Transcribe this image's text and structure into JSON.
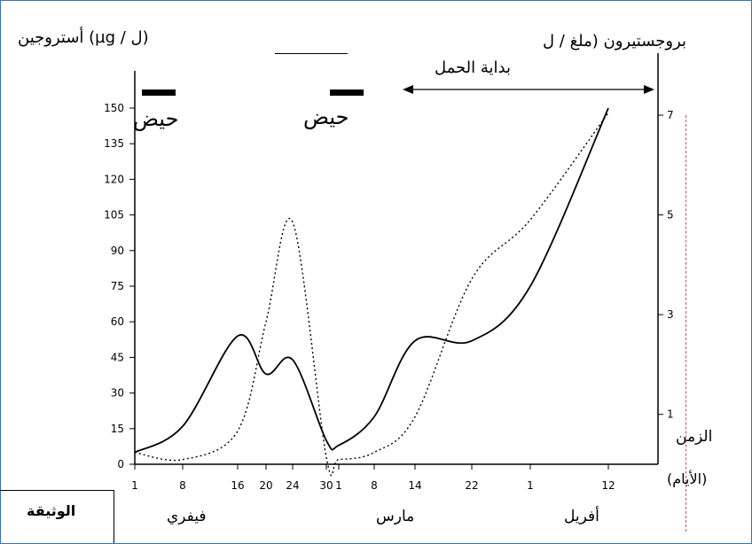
{
  "chart_data": {
    "type": "line",
    "left_axis_title": "أستروجين (µg / ل)",
    "right_axis_title": "بروجستيرون (ملغ / ل",
    "x_axis_title": "الزمن",
    "x_axis_unit": "(الأيام)",
    "ylim_left": [
      0,
      150
    ],
    "yticks_left": [
      "150",
      "135",
      "120",
      "105",
      "90",
      "75",
      "60",
      "45",
      "30",
      "15",
      "0"
    ],
    "yticks_right": [
      "7",
      "5",
      "3",
      "1"
    ],
    "xticks": [
      "1",
      "8",
      "16",
      "20",
      "24",
      "30",
      "1",
      "8",
      "14",
      "22",
      "1",
      "12"
    ],
    "month_labels": [
      "فيفري",
      "مارس",
      "أفريل"
    ],
    "menstruation_label": "حيض",
    "pregnancy_label": "بداية الحمل",
    "series": [
      {
        "style": "solid",
        "x": [
          "1",
          "8",
          "16",
          "20",
          "24",
          "30",
          "1",
          "8",
          "14",
          "22",
          "1",
          "12"
        ],
        "y": [
          5,
          16,
          54,
          38,
          44,
          10,
          8,
          20,
          52,
          52,
          75,
          150
        ]
      },
      {
        "style": "dotted",
        "x": [
          "1",
          "8",
          "16",
          "20",
          "24",
          "30",
          "1",
          "8",
          "14",
          "22",
          "1",
          "12"
        ],
        "y": [
          5,
          2,
          14,
          60,
          102,
          3,
          2,
          5,
          20,
          78,
          103,
          148
        ]
      }
    ]
  },
  "document_label": "الوثيقة"
}
